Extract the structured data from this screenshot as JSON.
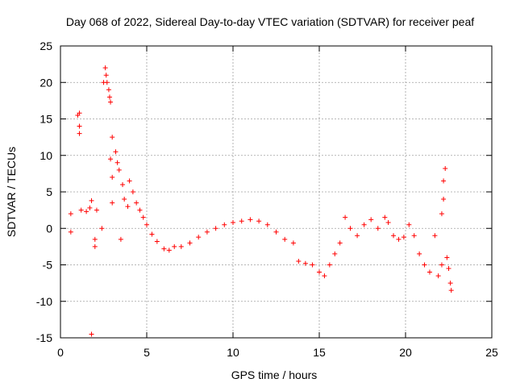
{
  "colors": {
    "series": "#ff0000",
    "grid": "#a0a0a0",
    "axis": "#000000"
  },
  "chart_data": {
    "type": "scatter",
    "marker": "plus",
    "title": "Day 068 of 2022, Sidereal Day-to-day VTEC variation (SDTVAR) for receiver peaf",
    "xlabel": "GPS time / hours",
    "ylabel": "SDTVAR / TECUs",
    "xlim": [
      0,
      25
    ],
    "ylim": [
      -15,
      25
    ],
    "xticks": [
      0,
      5,
      10,
      15,
      20,
      25
    ],
    "yticks": [
      -15,
      -10,
      -5,
      0,
      5,
      10,
      15,
      20,
      25
    ],
    "xtick_labels": [
      "0",
      "5",
      "10",
      "15",
      "20",
      "25"
    ],
    "ytick_labels": [
      "-15",
      "-10",
      "-5",
      "0",
      "5",
      "10",
      "15",
      "20",
      "25"
    ],
    "grid": true,
    "series": [
      {
        "name": "SDTVAR",
        "color": "#ff0000",
        "approximate_trace": [
          {
            "x": 0.6,
            "y": -0.5
          },
          {
            "x": 0.6,
            "y": 2.0
          },
          {
            "x": 1.0,
            "y": 15.5
          },
          {
            "x": 1.1,
            "y": 15.8
          },
          {
            "x": 1.1,
            "y": 14.0
          },
          {
            "x": 1.1,
            "y": 13.0
          },
          {
            "x": 1.2,
            "y": 2.5
          },
          {
            "x": 1.5,
            "y": 2.3
          },
          {
            "x": 1.7,
            "y": 2.8
          },
          {
            "x": 1.8,
            "y": -14.5
          },
          {
            "x": 1.8,
            "y": 3.8
          },
          {
            "x": 2.0,
            "y": -1.5
          },
          {
            "x": 2.0,
            "y": -2.5
          },
          {
            "x": 2.1,
            "y": 2.5
          },
          {
            "x": 2.4,
            "y": 0.0
          },
          {
            "x": 2.5,
            "y": 20.0
          },
          {
            "x": 2.6,
            "y": 22.0
          },
          {
            "x": 2.65,
            "y": 21.0
          },
          {
            "x": 2.7,
            "y": 20.0
          },
          {
            "x": 2.8,
            "y": 19.0
          },
          {
            "x": 2.85,
            "y": 18.0
          },
          {
            "x": 2.9,
            "y": 17.3
          },
          {
            "x": 2.9,
            "y": 9.5
          },
          {
            "x": 3.0,
            "y": 12.5
          },
          {
            "x": 3.0,
            "y": 7.0
          },
          {
            "x": 3.0,
            "y": 3.5
          },
          {
            "x": 3.2,
            "y": 10.5
          },
          {
            "x": 3.3,
            "y": 9.0
          },
          {
            "x": 3.4,
            "y": 8.0
          },
          {
            "x": 3.5,
            "y": -1.5
          },
          {
            "x": 3.6,
            "y": 6.0
          },
          {
            "x": 3.7,
            "y": 4.0
          },
          {
            "x": 3.9,
            "y": 3.0
          },
          {
            "x": 4.0,
            "y": 6.5
          },
          {
            "x": 4.2,
            "y": 5.0
          },
          {
            "x": 4.4,
            "y": 3.5
          },
          {
            "x": 4.6,
            "y": 2.5
          },
          {
            "x": 4.8,
            "y": 1.5
          },
          {
            "x": 5.0,
            "y": 0.5
          },
          {
            "x": 5.3,
            "y": -0.8
          },
          {
            "x": 5.6,
            "y": -1.8
          },
          {
            "x": 6.0,
            "y": -2.8
          },
          {
            "x": 6.3,
            "y": -3.0
          },
          {
            "x": 6.6,
            "y": -2.5
          },
          {
            "x": 7.0,
            "y": -2.5
          },
          {
            "x": 7.5,
            "y": -2.0
          },
          {
            "x": 8.0,
            "y": -1.2
          },
          {
            "x": 8.5,
            "y": -0.5
          },
          {
            "x": 9.0,
            "y": 0.0
          },
          {
            "x": 9.5,
            "y": 0.5
          },
          {
            "x": 10.0,
            "y": 0.8
          },
          {
            "x": 10.5,
            "y": 1.0
          },
          {
            "x": 11.0,
            "y": 1.2
          },
          {
            "x": 11.5,
            "y": 1.0
          },
          {
            "x": 12.0,
            "y": 0.5
          },
          {
            "x": 12.5,
            "y": -0.5
          },
          {
            "x": 13.0,
            "y": -1.5
          },
          {
            "x": 13.5,
            "y": -2.0
          },
          {
            "x": 13.8,
            "y": -4.5
          },
          {
            "x": 14.2,
            "y": -4.8
          },
          {
            "x": 14.6,
            "y": -5.0
          },
          {
            "x": 15.0,
            "y": -6.0
          },
          {
            "x": 15.3,
            "y": -6.5
          },
          {
            "x": 15.6,
            "y": -5.0
          },
          {
            "x": 15.9,
            "y": -3.5
          },
          {
            "x": 16.2,
            "y": -2.0
          },
          {
            "x": 16.5,
            "y": 1.5
          },
          {
            "x": 16.8,
            "y": 0.0
          },
          {
            "x": 17.2,
            "y": -1.0
          },
          {
            "x": 17.6,
            "y": 0.5
          },
          {
            "x": 18.0,
            "y": 1.2
          },
          {
            "x": 18.4,
            "y": 0.0
          },
          {
            "x": 18.8,
            "y": 1.5
          },
          {
            "x": 19.0,
            "y": 0.8
          },
          {
            "x": 19.3,
            "y": -1.0
          },
          {
            "x": 19.6,
            "y": -1.5
          },
          {
            "x": 19.9,
            "y": -1.2
          },
          {
            "x": 20.2,
            "y": 0.5
          },
          {
            "x": 20.5,
            "y": -1.0
          },
          {
            "x": 20.8,
            "y": -3.5
          },
          {
            "x": 21.1,
            "y": -5.0
          },
          {
            "x": 21.4,
            "y": -6.0
          },
          {
            "x": 21.7,
            "y": -1.0
          },
          {
            "x": 21.9,
            "y": -6.5
          },
          {
            "x": 22.1,
            "y": -5.0
          },
          {
            "x": 22.1,
            "y": 2.0
          },
          {
            "x": 22.2,
            "y": 4.0
          },
          {
            "x": 22.2,
            "y": 6.5
          },
          {
            "x": 22.3,
            "y": 8.2
          },
          {
            "x": 22.4,
            "y": -4.0
          },
          {
            "x": 22.5,
            "y": -5.5
          },
          {
            "x": 22.6,
            "y": -7.5
          },
          {
            "x": 22.65,
            "y": -8.5
          }
        ]
      }
    ]
  }
}
